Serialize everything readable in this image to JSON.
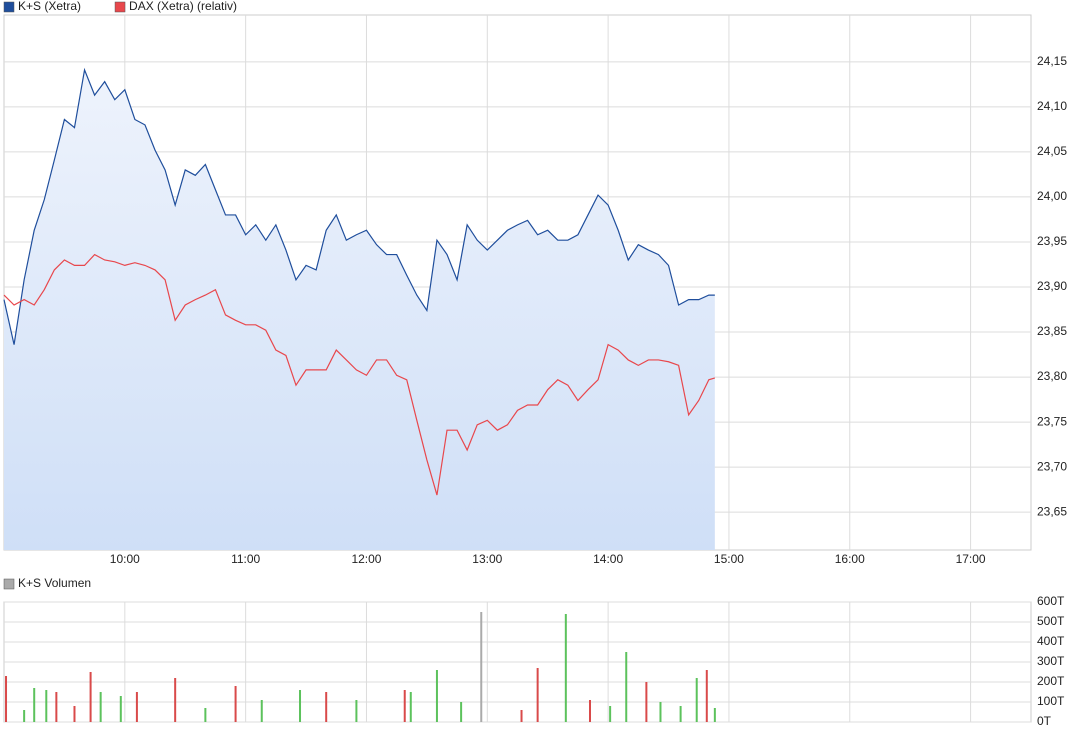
{
  "chart_data": [
    {
      "type": "line",
      "x": [
        540,
        545,
        550,
        555,
        560,
        565,
        570,
        575,
        580,
        585,
        590,
        595,
        600,
        605,
        610,
        615,
        620,
        625,
        630,
        635,
        640,
        645,
        650,
        655,
        660,
        665,
        670,
        675,
        680,
        685,
        690,
        695,
        700,
        705,
        710,
        715,
        720,
        725,
        730,
        735,
        740,
        745,
        750,
        755,
        760,
        765,
        770,
        775,
        780,
        785,
        790,
        795,
        800,
        805,
        810,
        815,
        820,
        825,
        830,
        835,
        840,
        845,
        850,
        855,
        860,
        865,
        870,
        875,
        880,
        885,
        890,
        893
      ],
      "series": [
        {
          "name": "K+S (Xetra)",
          "color": "#1f4e9c",
          "values": [
            23.886,
            23.836,
            23.908,
            23.963,
            23.997,
            24.041,
            24.086,
            24.077,
            24.141,
            24.113,
            24.128,
            24.108,
            24.119,
            24.086,
            24.08,
            24.052,
            24.03,
            23.991,
            24.03,
            24.024,
            24.036,
            24.008,
            23.98,
            23.98,
            23.958,
            23.969,
            23.952,
            23.969,
            23.941,
            23.908,
            23.924,
            23.919,
            23.963,
            23.98,
            23.952,
            23.958,
            23.963,
            23.947,
            23.936,
            23.936,
            23.913,
            23.891,
            23.874,
            23.952,
            23.936,
            23.908,
            23.969,
            23.952,
            23.941,
            23.952,
            23.963,
            23.969,
            23.974,
            23.958,
            23.963,
            23.952,
            23.952,
            23.958,
            23.98,
            24.002,
            23.991,
            23.963,
            23.93,
            23.947,
            23.941,
            23.936,
            23.924,
            23.88,
            23.886,
            23.886,
            23.891,
            23.891
          ]
        },
        {
          "name": "DAX (Xetra) (relativ)",
          "color": "#e8474c",
          "values": [
            23.891,
            23.88,
            23.886,
            23.88,
            23.897,
            23.919,
            23.93,
            23.924,
            23.924,
            23.936,
            23.93,
            23.928,
            23.924,
            23.927,
            23.924,
            23.919,
            23.908,
            23.863,
            23.88,
            23.886,
            23.891,
            23.897,
            23.869,
            23.863,
            23.858,
            23.858,
            23.852,
            23.83,
            23.824,
            23.791,
            23.808,
            23.808,
            23.808,
            23.83,
            23.819,
            23.808,
            23.802,
            23.819,
            23.819,
            23.802,
            23.797,
            23.752,
            23.708,
            23.669,
            23.741,
            23.741,
            23.719,
            23.747,
            23.752,
            23.741,
            23.747,
            23.763,
            23.769,
            23.769,
            23.786,
            23.797,
            23.791,
            23.774,
            23.786,
            23.797,
            23.836,
            23.83,
            23.819,
            23.813,
            23.819,
            23.819,
            23.817,
            23.813,
            23.758,
            23.774,
            23.797,
            23.799
          ]
        }
      ],
      "xlim": [
        540,
        1050
      ],
      "xticks": [
        {
          "value": 600,
          "label": "10:00"
        },
        {
          "value": 660,
          "label": "11:00"
        },
        {
          "value": 720,
          "label": "12:00"
        },
        {
          "value": 780,
          "label": "13:00"
        },
        {
          "value": 840,
          "label": "14:00"
        },
        {
          "value": 900,
          "label": "15:00"
        },
        {
          "value": 960,
          "label": "16:00"
        },
        {
          "value": 1020,
          "label": "17:00"
        }
      ],
      "ylim": [
        23.608,
        24.202
      ],
      "yticks": [
        {
          "value": 23.65,
          "label": "23,65"
        },
        {
          "value": 23.7,
          "label": "23,70"
        },
        {
          "value": 23.75,
          "label": "23,75"
        },
        {
          "value": 23.8,
          "label": "23,80"
        },
        {
          "value": 23.85,
          "label": "23,85"
        },
        {
          "value": 23.9,
          "label": "23,90"
        },
        {
          "value": 23.95,
          "label": "23,95"
        },
        {
          "value": 24.0,
          "label": "24,00"
        },
        {
          "value": 24.05,
          "label": "24,05"
        },
        {
          "value": 24.1,
          "label": "24,10"
        },
        {
          "value": 24.15,
          "label": "24,15"
        }
      ],
      "grid": true
    },
    {
      "type": "bar",
      "title": "K+S Volumen",
      "color": "#aaaaaa",
      "x": [
        541,
        550,
        555,
        561,
        566,
        575,
        583,
        588,
        598,
        606,
        625,
        640,
        655,
        668,
        687,
        700,
        715,
        739,
        742,
        755,
        767,
        777,
        797,
        805,
        819,
        831,
        841,
        849,
        859,
        866,
        876,
        884,
        889,
        893
      ],
      "values": [
        230,
        60,
        170,
        160,
        150,
        80,
        250,
        150,
        130,
        150,
        220,
        70,
        180,
        110,
        160,
        150,
        110,
        160,
        150,
        260,
        100,
        550,
        60,
        270,
        540,
        110,
        80,
        350,
        200,
        100,
        80,
        220,
        260,
        70
      ],
      "colors": [
        "#d94a4a",
        "#5cc25c",
        "#5cc25c",
        "#5cc25c",
        "#d94a4a",
        "#d94a4a",
        "#d94a4a",
        "#5cc25c",
        "#5cc25c",
        "#d94a4a",
        "#d94a4a",
        "#5cc25c",
        "#d94a4a",
        "#5cc25c",
        "#5cc25c",
        "#d94a4a",
        "#5cc25c",
        "#d94a4a",
        "#5cc25c",
        "#5cc25c",
        "#5cc25c",
        "#aaaaaa",
        "#d94a4a",
        "#d94a4a",
        "#5cc25c",
        "#d94a4a",
        "#5cc25c",
        "#5cc25c",
        "#d94a4a",
        "#5cc25c",
        "#5cc25c",
        "#5cc25c",
        "#d94a4a",
        "#5cc25c"
      ],
      "xlim": [
        540,
        1050
      ],
      "ylim": [
        0,
        600
      ],
      "yticks": [
        {
          "value": 0,
          "label": "0T"
        },
        {
          "value": 100,
          "label": "100T"
        },
        {
          "value": 200,
          "label": "200T"
        },
        {
          "value": 300,
          "label": "300T"
        },
        {
          "value": 400,
          "label": "400T"
        },
        {
          "value": 500,
          "label": "500T"
        },
        {
          "value": 600,
          "label": "600T"
        }
      ],
      "grid": true
    }
  ]
}
